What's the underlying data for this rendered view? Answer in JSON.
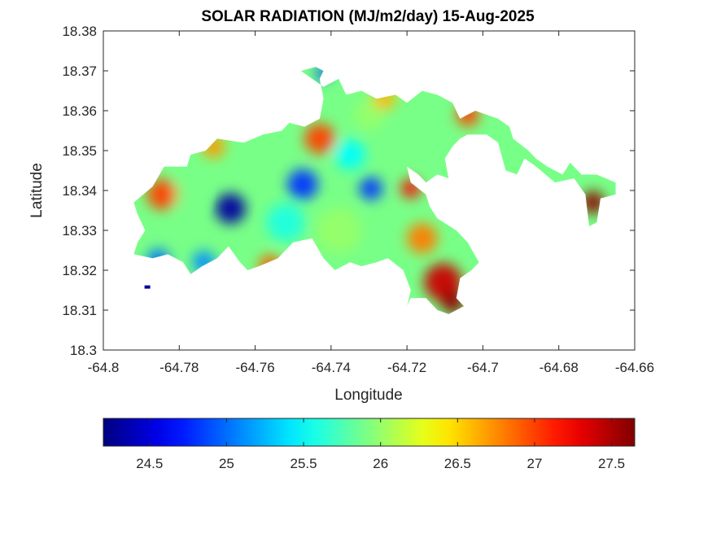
{
  "chart_data": {
    "type": "heatmap",
    "title": "SOLAR RADIATION (MJ/m2/day) 15-Aug-2025",
    "xlabel": "Longitude",
    "ylabel": "Latitude",
    "xlim": [
      -64.8,
      -64.66
    ],
    "ylim": [
      18.3,
      18.38
    ],
    "x_ticks": [
      -64.8,
      -64.78,
      -64.76,
      -64.74,
      -64.72,
      -64.7,
      -64.68,
      -64.66
    ],
    "x_tick_labels": [
      "-64.8",
      "-64.78",
      "-64.76",
      "-64.74",
      "-64.72",
      "-64.7",
      "-64.68",
      "-64.66"
    ],
    "y_ticks": [
      18.3,
      18.31,
      18.32,
      18.33,
      18.34,
      18.35,
      18.36,
      18.37,
      18.38
    ],
    "y_tick_labels": [
      "18.3",
      "18.31",
      "18.32",
      "18.33",
      "18.34",
      "18.35",
      "18.36",
      "18.37",
      "18.38"
    ],
    "colormap": "jet",
    "colorbar": {
      "location": "bottom",
      "limits": [
        24.2,
        27.65
      ],
      "ticks": [
        24.5,
        25,
        25.5,
        26,
        26.5,
        27,
        27.5
      ],
      "tick_labels": [
        "24.5",
        "25",
        "25.5",
        "26",
        "26.5",
        "27",
        "27.5"
      ]
    },
    "grid": false,
    "hotspots": [
      {
        "name": "blue-low",
        "x": -64.7665,
        "y": 18.3355,
        "value": 24.3,
        "r": 0.004
      },
      {
        "name": "blue-low",
        "x": -64.7475,
        "y": 18.3415,
        "value": 24.8,
        "r": 0.004
      },
      {
        "name": "blue-low",
        "x": -64.7295,
        "y": 18.3405,
        "value": 24.8,
        "r": 0.003
      },
      {
        "name": "blue-low",
        "x": -64.7855,
        "y": 18.3225,
        "value": 25.0,
        "r": 0.003
      },
      {
        "name": "blue-low",
        "x": -64.7735,
        "y": 18.322,
        "value": 25.1,
        "r": 0.003
      },
      {
        "name": "blue-low",
        "x": -64.742,
        "y": 18.3695,
        "value": 24.9,
        "r": 0.002
      },
      {
        "name": "cyan-mid",
        "x": -64.752,
        "y": 18.332,
        "value": 25.6,
        "r": 0.005
      },
      {
        "name": "cyan-mid",
        "x": -64.735,
        "y": 18.349,
        "value": 25.5,
        "r": 0.004
      },
      {
        "name": "green-mid",
        "x": -64.738,
        "y": 18.33,
        "value": 26.0,
        "r": 0.006
      },
      {
        "name": "green-mid",
        "x": -64.778,
        "y": 18.339,
        "value": 25.9,
        "r": 0.004
      },
      {
        "name": "green-mid",
        "x": -64.73,
        "y": 18.359,
        "value": 26.0,
        "r": 0.004
      },
      {
        "name": "red-high",
        "x": -64.7845,
        "y": 18.339,
        "value": 27.0,
        "r": 0.004
      },
      {
        "name": "red-high",
        "x": -64.743,
        "y": 18.353,
        "value": 27.0,
        "r": 0.004
      },
      {
        "name": "red-high",
        "x": -64.719,
        "y": 18.3405,
        "value": 27.2,
        "r": 0.0025
      },
      {
        "name": "red-high",
        "x": -64.7105,
        "y": 18.317,
        "value": 27.4,
        "r": 0.005
      },
      {
        "name": "red-high",
        "x": -64.756,
        "y": 18.321,
        "value": 26.9,
        "r": 0.003
      },
      {
        "name": "red-high",
        "x": -64.704,
        "y": 18.359,
        "value": 27.0,
        "r": 0.003
      },
      {
        "name": "darkred-high",
        "x": -64.708,
        "y": 18.312,
        "value": 27.6,
        "r": 0.003
      },
      {
        "name": "darkred-high",
        "x": -64.671,
        "y": 18.337,
        "value": 27.6,
        "r": 0.003
      },
      {
        "name": "orange-high",
        "x": -64.771,
        "y": 18.351,
        "value": 26.7,
        "r": 0.003
      },
      {
        "name": "orange-high",
        "x": -64.726,
        "y": 18.363,
        "value": 26.6,
        "r": 0.003
      },
      {
        "name": "orange-high",
        "x": -64.716,
        "y": 18.328,
        "value": 26.8,
        "r": 0.004
      }
    ],
    "coverage_region": {
      "name": "land-data-region",
      "polygon": [
        [
          -64.792,
          18.337
        ],
        [
          -64.787,
          18.341
        ],
        [
          -64.784,
          18.346
        ],
        [
          -64.778,
          18.346
        ],
        [
          -64.777,
          18.349
        ],
        [
          -64.773,
          18.35
        ],
        [
          -64.77,
          18.353
        ],
        [
          -64.763,
          18.352
        ],
        [
          -64.758,
          18.354
        ],
        [
          -64.753,
          18.355
        ],
        [
          -64.751,
          18.357
        ],
        [
          -64.747,
          18.356
        ],
        [
          -64.743,
          18.358
        ],
        [
          -64.742,
          18.363
        ],
        [
          -64.743,
          18.368
        ],
        [
          -64.742,
          18.37
        ],
        [
          -64.744,
          18.371
        ],
        [
          -64.748,
          18.37
        ],
        [
          -64.742,
          18.366
        ],
        [
          -64.738,
          18.368
        ],
        [
          -64.736,
          18.364
        ],
        [
          -64.732,
          18.365
        ],
        [
          -64.728,
          18.363
        ],
        [
          -64.723,
          18.364
        ],
        [
          -64.72,
          18.362
        ],
        [
          -64.716,
          18.365
        ],
        [
          -64.712,
          18.364
        ],
        [
          -64.708,
          18.362
        ],
        [
          -64.706,
          18.358
        ],
        [
          -64.702,
          18.36
        ],
        [
          -64.699,
          18.359
        ],
        [
          -64.696,
          18.358
        ],
        [
          -64.693,
          18.356
        ],
        [
          -64.692,
          18.353
        ],
        [
          -64.688,
          18.35
        ],
        [
          -64.686,
          18.348
        ],
        [
          -64.683,
          18.346
        ],
        [
          -64.679,
          18.344
        ],
        [
          -64.677,
          18.347
        ],
        [
          -64.674,
          18.344
        ],
        [
          -64.67,
          18.344
        ],
        [
          -64.665,
          18.342
        ],
        [
          -64.665,
          18.339
        ],
        [
          -64.669,
          18.338
        ],
        [
          -64.67,
          18.332
        ],
        [
          -64.672,
          18.331
        ],
        [
          -64.673,
          18.339
        ],
        [
          -64.676,
          18.343
        ],
        [
          -64.681,
          18.342
        ],
        [
          -64.686,
          18.346
        ],
        [
          -64.689,
          18.348
        ],
        [
          -64.691,
          18.344
        ],
        [
          -64.694,
          18.345
        ],
        [
          -64.696,
          18.352
        ],
        [
          -64.699,
          18.354
        ],
        [
          -64.704,
          18.354
        ],
        [
          -64.706,
          18.353
        ],
        [
          -64.708,
          18.351
        ],
        [
          -64.71,
          18.348
        ],
        [
          -64.709,
          18.343
        ],
        [
          -64.712,
          18.344
        ],
        [
          -64.715,
          18.342
        ],
        [
          -64.717,
          18.344
        ],
        [
          -64.72,
          18.346
        ],
        [
          -64.719,
          18.342
        ],
        [
          -64.715,
          18.339
        ],
        [
          -64.714,
          18.336
        ],
        [
          -64.712,
          18.333
        ],
        [
          -64.707,
          18.33
        ],
        [
          -64.704,
          18.327
        ],
        [
          -64.701,
          18.322
        ],
        [
          -64.703,
          18.32
        ],
        [
          -64.706,
          18.318
        ],
        [
          -64.707,
          18.313
        ],
        [
          -64.705,
          18.311
        ],
        [
          -64.709,
          18.309
        ],
        [
          -64.712,
          18.31
        ],
        [
          -64.715,
          18.313
        ],
        [
          -64.719,
          18.313
        ],
        [
          -64.72,
          18.311
        ],
        [
          -64.719,
          18.315
        ],
        [
          -64.721,
          18.32
        ],
        [
          -64.725,
          18.323
        ],
        [
          -64.728,
          18.322
        ],
        [
          -64.732,
          18.321
        ],
        [
          -64.735,
          18.322
        ],
        [
          -64.739,
          18.32
        ],
        [
          -64.742,
          18.323
        ],
        [
          -64.745,
          18.328
        ],
        [
          -64.75,
          18.327
        ],
        [
          -64.754,
          18.323
        ],
        [
          -64.759,
          18.321
        ],
        [
          -64.762,
          18.32
        ],
        [
          -64.764,
          18.322
        ],
        [
          -64.767,
          18.326
        ],
        [
          -64.77,
          18.323
        ],
        [
          -64.774,
          18.321
        ],
        [
          -64.777,
          18.319
        ],
        [
          -64.779,
          18.322
        ],
        [
          -64.783,
          18.324
        ],
        [
          -64.787,
          18.323
        ],
        [
          -64.792,
          18.324
        ],
        [
          -64.791,
          18.327
        ],
        [
          -64.789,
          18.33
        ],
        [
          -64.791,
          18.334
        ]
      ]
    },
    "isolated_marks": [
      {
        "name": "isolated-data-pixel",
        "x": -64.7885,
        "y": 18.3158,
        "value": 24.3
      }
    ]
  }
}
